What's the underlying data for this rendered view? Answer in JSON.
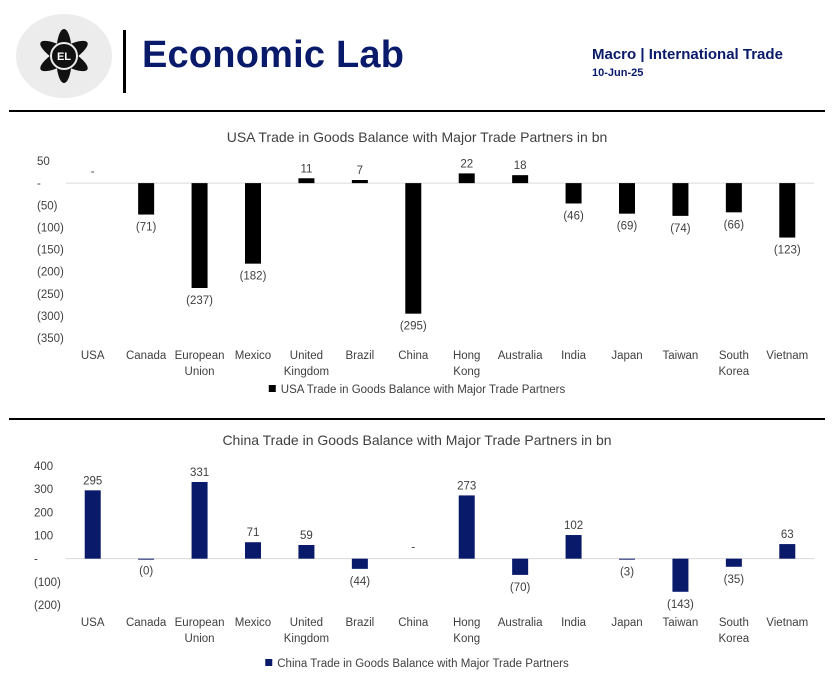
{
  "header": {
    "logo_text": "EL",
    "brand": "Economic Lab",
    "section": "Macro | International Trade",
    "date": "10-Jun-25"
  },
  "colors": {
    "usa_series": "#000000",
    "china_series": "#0a1a6b",
    "brand": "#0a1a6b",
    "axis": "#d9d9d9"
  },
  "chart_data": [
    {
      "type": "bar",
      "title": "USA Trade in Goods Balance with Major Trade Partners in bn",
      "categories": [
        [
          "USA"
        ],
        [
          "Canada"
        ],
        [
          "European",
          "Union"
        ],
        [
          "Mexico"
        ],
        [
          "United",
          "Kingdom"
        ],
        [
          "Brazil"
        ],
        [
          "China"
        ],
        [
          "Hong",
          "Kong"
        ],
        [
          "Australia"
        ],
        [
          "India"
        ],
        [
          "Japan"
        ],
        [
          "Taiwan"
        ],
        [
          "South",
          "Korea"
        ],
        [
          "Vietnam"
        ]
      ],
      "series": [
        {
          "name": "USA Trade in Goods Balance with Major Trade Partners",
          "values": [
            0,
            -71,
            -237,
            -182,
            11,
            7,
            -295,
            22,
            18,
            -46,
            -69,
            -74,
            -66,
            -123
          ],
          "labels": [
            "-",
            "(71)",
            "(237)",
            "(182)",
            "11",
            "7",
            "(295)",
            "22",
            "18",
            "(46)",
            "(69)",
            "(74)",
            "(66)",
            "(123)"
          ]
        }
      ],
      "ylim": [
        -350,
        50
      ],
      "yticks": [
        50,
        0,
        -50,
        -100,
        -150,
        -200,
        -250,
        -300,
        -350
      ],
      "ytick_labels": [
        "50",
        "-",
        "(50)",
        "(100)",
        "(150)",
        "(200)",
        "(250)",
        "(300)",
        "(350)"
      ],
      "legend": "bottom",
      "grid": false
    },
    {
      "type": "bar",
      "title": "China Trade in Goods Balance with Major Trade Partners in bn",
      "categories": [
        [
          "USA"
        ],
        [
          "Canada"
        ],
        [
          "European",
          "Union"
        ],
        [
          "Mexico"
        ],
        [
          "United",
          "Kingdom"
        ],
        [
          "Brazil"
        ],
        [
          "China"
        ],
        [
          "Hong",
          "Kong"
        ],
        [
          "Australia"
        ],
        [
          "India"
        ],
        [
          "Japan"
        ],
        [
          "Taiwan"
        ],
        [
          "South",
          "Korea"
        ],
        [
          "Vietnam"
        ]
      ],
      "series": [
        {
          "name": "China Trade in Goods Balance with Major Trade Partners",
          "values": [
            295,
            -0.3,
            331,
            71,
            59,
            -44,
            0,
            273,
            -70,
            102,
            -3,
            -143,
            -35,
            63
          ],
          "labels": [
            "295",
            "(0)",
            "331",
            "71",
            "59",
            "(44)",
            "-",
            "273",
            "(70)",
            "102",
            "(3)",
            "(143)",
            "(35)",
            "63"
          ]
        }
      ],
      "ylim": [
        -200,
        400
      ],
      "yticks": [
        400,
        300,
        200,
        100,
        0,
        -100,
        -200
      ],
      "ytick_labels": [
        "400",
        "300",
        "200",
        "100",
        "-",
        "(100)",
        "(200)"
      ],
      "legend": "bottom",
      "grid": false
    }
  ]
}
